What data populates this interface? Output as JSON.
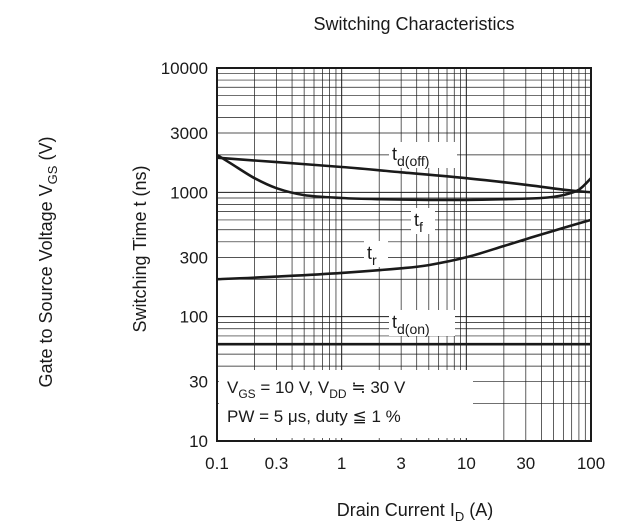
{
  "chart_data": {
    "type": "line",
    "title": "Switching Characteristics",
    "xlabel": "Drain Current",
    "xlabel_symbol": "I",
    "xlabel_sub": "D",
    "xlabel_unit": "(A)",
    "ylabel": "Switching Time  t  (ns)",
    "ylabel_outer": "Gate to Source Voltage",
    "ylabel_outer_symbol": "V",
    "ylabel_outer_sub": "GS",
    "ylabel_outer_unit": "(V)",
    "x_scale": "log",
    "y_scale": "log",
    "xlim": [
      0.1,
      100
    ],
    "ylim": [
      10,
      10000
    ],
    "x_ticks": [
      0.1,
      0.3,
      1,
      3,
      10,
      30,
      100
    ],
    "x_tick_labels": [
      "0.1",
      "0.3",
      "1",
      "3",
      "10",
      "30",
      "100"
    ],
    "y_ticks": [
      10,
      30,
      100,
      300,
      1000,
      3000,
      10000
    ],
    "y_tick_labels": [
      "10",
      "30",
      "100",
      "300",
      "1000",
      "3000",
      "10000"
    ],
    "grid": true,
    "series": [
      {
        "name": "td(off)",
        "label_main": "t",
        "label_sub": "d(off)",
        "x": [
          0.1,
          0.3,
          1,
          3,
          10,
          30,
          60,
          100
        ],
        "y": [
          1900,
          1750,
          1600,
          1450,
          1300,
          1150,
          1050,
          1000
        ]
      },
      {
        "name": "tf",
        "label_main": "t",
        "label_sub": "f",
        "x": [
          0.1,
          0.13,
          0.2,
          0.3,
          0.5,
          1,
          2,
          5,
          10,
          20,
          40,
          60,
          80,
          100
        ],
        "y": [
          2000,
          1700,
          1300,
          1080,
          950,
          900,
          880,
          870,
          870,
          880,
          900,
          950,
          1050,
          1300
        ]
      },
      {
        "name": "tr",
        "label_main": "t",
        "label_sub": "r",
        "x": [
          0.1,
          0.3,
          1,
          3,
          5,
          10,
          20,
          30,
          50,
          100
        ],
        "y": [
          200,
          210,
          225,
          245,
          260,
          300,
          370,
          420,
          490,
          600
        ]
      },
      {
        "name": "td(on)",
        "label_main": "t",
        "label_sub": "d(on)",
        "x": [
          0.1,
          100
        ],
        "y": [
          60,
          60
        ]
      }
    ],
    "annotations": [
      {
        "segments": [
          [
            "V",
            "normal"
          ],
          [
            "GS",
            "sub"
          ],
          [
            " = 10 V, V",
            "normal"
          ],
          [
            "DD",
            "sub"
          ],
          [
            " ≒ 30 V",
            "normal"
          ]
        ]
      },
      {
        "segments": [
          [
            "PW = 5 μs, duty ≦ 1 %",
            "normal"
          ]
        ]
      }
    ]
  }
}
